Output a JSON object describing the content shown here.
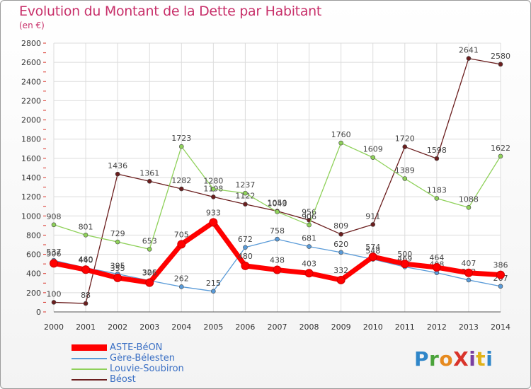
{
  "title": "Evolution du Montant de la Dette par Habitant",
  "subtitle": "(en €)",
  "logo": "ProXiti",
  "logo_letters": [
    "P",
    "r",
    "o",
    "X",
    "i",
    "t",
    "i"
  ],
  "chart_data": {
    "type": "line",
    "title": "Evolution du Montant de la Dette par Habitant",
    "ylabel": "(en €)",
    "xlabel": "",
    "x": [
      "2000",
      "2001",
      "2002",
      "2003",
      "2004",
      "2005",
      "2006",
      "2007",
      "2008",
      "2009",
      "2010",
      "2011",
      "2012",
      "2013",
      "2014"
    ],
    "ylim": [
      0,
      2800
    ],
    "yticks": [
      0,
      200,
      400,
      600,
      800,
      1000,
      1200,
      1400,
      1600,
      1800,
      2000,
      2200,
      2400,
      2600,
      2800
    ],
    "grid": true,
    "legend_position": "bottom-left",
    "series": [
      {
        "name": "Béost",
        "color": "#6b1e1e",
        "values": [
          100,
          88,
          1436,
          1361,
          1282,
          1198,
          1122,
          1050,
          956,
          809,
          911,
          1720,
          1598,
          2641,
          2580
        ]
      },
      {
        "name": "Louvie-Soubiron",
        "color": "#8fd15a",
        "values": [
          908,
          801,
          729,
          653,
          1723,
          1280,
          1237,
          1043,
          906,
          1760,
          1609,
          1389,
          1183,
          1088,
          1622
        ]
      },
      {
        "name": "Gère-Bélesten",
        "color": "#5a9bd8",
        "values": [
          537,
          460,
          395,
          326,
          262,
          215,
          672,
          758,
          681,
          620,
          548,
          469,
          408,
          332,
          267
        ]
      },
      {
        "name": "ASTE-BéON",
        "color": "#ff0000",
        "values": [
          506,
          440,
          355,
          305,
          705,
          933,
          480,
          438,
          403,
          332,
          574,
          500,
          464,
          407,
          386
        ]
      }
    ],
    "legend": [
      "ASTE-BéON",
      "Gère-Bélesten",
      "Louvie-Soubiron",
      "Béost"
    ]
  }
}
